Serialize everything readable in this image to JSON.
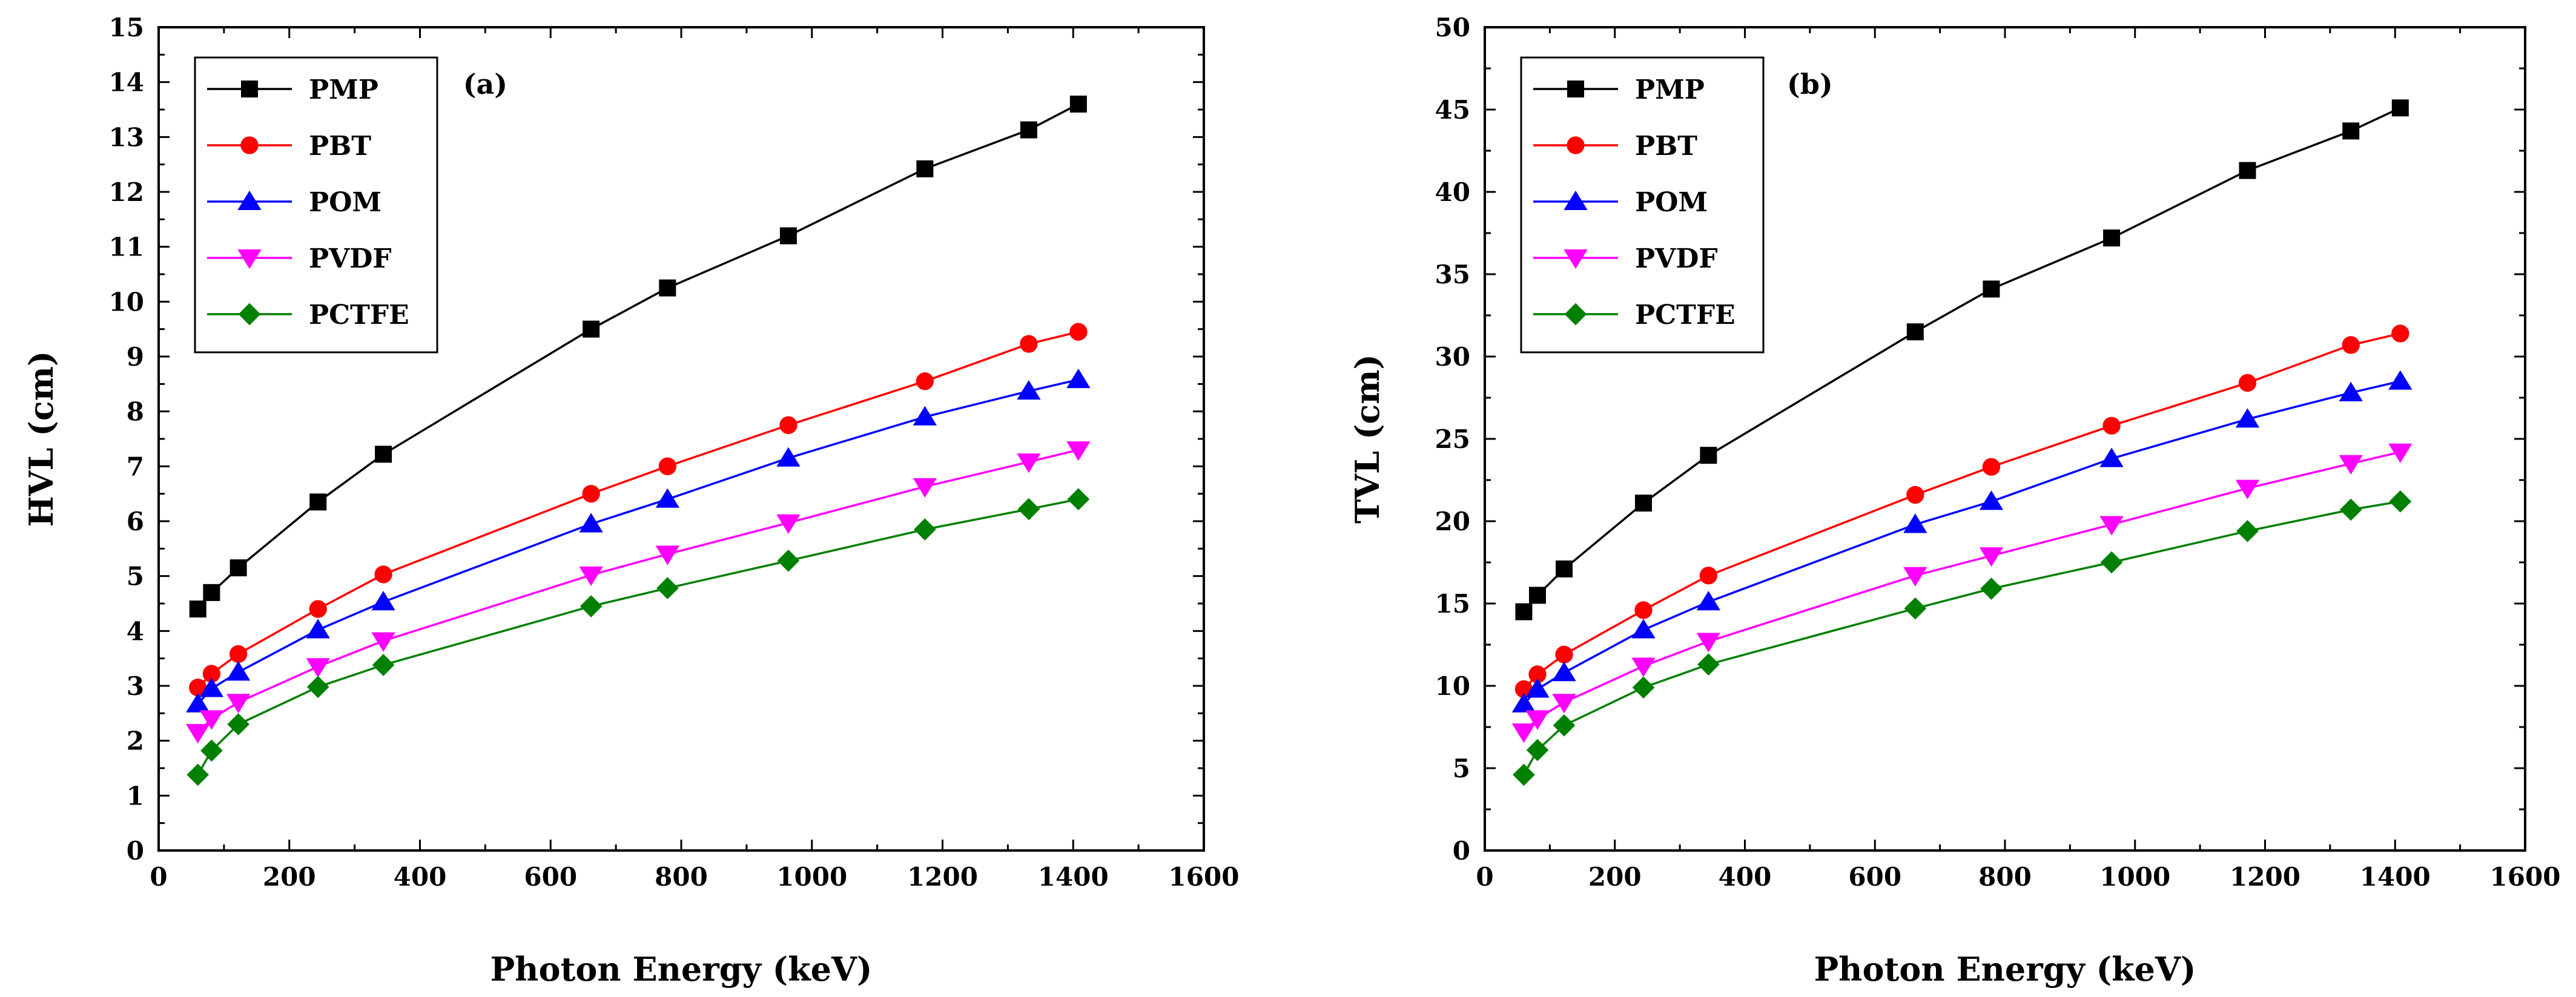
{
  "chart_data": [
    {
      "type": "line",
      "panel_label": "(a)",
      "xlabel": "Photon Energy (keV)",
      "ylabel": "HVL (cm)",
      "xlim": [
        0,
        1600
      ],
      "ylim": [
        0,
        15
      ],
      "xticks": [
        "0",
        "200",
        "400",
        "600",
        "800",
        "1000",
        "1200",
        "1400",
        "1600"
      ],
      "yticks": [
        "0",
        "1",
        "2",
        "3",
        "4",
        "5",
        "6",
        "7",
        "8",
        "9",
        "10",
        "11",
        "12",
        "13",
        "14",
        "15"
      ],
      "legend_position": "top-left",
      "x": [
        60,
        81,
        122,
        244,
        344,
        662,
        779,
        964,
        1173,
        1332,
        1408
      ],
      "series": [
        {
          "name": "PMP",
          "color": "#000000",
          "marker": "square",
          "values": [
            4.4,
            4.7,
            5.15,
            6.35,
            7.22,
            9.5,
            10.25,
            11.2,
            12.42,
            13.13,
            13.6
          ]
        },
        {
          "name": "PBT",
          "color": "#ff0000",
          "marker": "circle",
          "values": [
            2.97,
            3.22,
            3.58,
            4.4,
            5.03,
            6.5,
            7.0,
            7.75,
            8.55,
            9.23,
            9.45
          ]
        },
        {
          "name": "POM",
          "color": "#0000ff",
          "marker": "triangle-up",
          "values": [
            2.67,
            2.95,
            3.25,
            4.02,
            4.53,
            5.95,
            6.4,
            7.15,
            7.9,
            8.37,
            8.58
          ]
        },
        {
          "name": "PVDF",
          "color": "#ff00ff",
          "marker": "triangle-down",
          "values": [
            2.15,
            2.4,
            2.7,
            3.35,
            3.82,
            5.02,
            5.4,
            5.97,
            6.63,
            7.08,
            7.3
          ]
        },
        {
          "name": "PCTFE",
          "color": "#008000",
          "marker": "diamond",
          "values": [
            1.38,
            1.82,
            2.3,
            2.98,
            3.38,
            4.45,
            4.78,
            5.28,
            5.85,
            6.22,
            6.4
          ]
        }
      ]
    },
    {
      "type": "line",
      "panel_label": "(b)",
      "xlabel": "Photon Energy (keV)",
      "ylabel": "TVL (cm)",
      "xlim": [
        0,
        1600
      ],
      "ylim": [
        0,
        50
      ],
      "xticks": [
        "0",
        "200",
        "400",
        "600",
        "800",
        "1000",
        "1200",
        "1400",
        "1600"
      ],
      "yticks": [
        "0",
        "5",
        "10",
        "15",
        "20",
        "25",
        "30",
        "35",
        "40",
        "45",
        "50"
      ],
      "legend_position": "top-left",
      "x": [
        60,
        81,
        122,
        244,
        344,
        662,
        779,
        964,
        1173,
        1332,
        1408
      ],
      "series": [
        {
          "name": "PMP",
          "color": "#000000",
          "marker": "square",
          "values": [
            14.5,
            15.5,
            17.1,
            21.1,
            24.0,
            31.5,
            34.1,
            37.2,
            41.3,
            43.7,
            45.1
          ]
        },
        {
          "name": "PBT",
          "color": "#ff0000",
          "marker": "circle",
          "values": [
            9.8,
            10.7,
            11.9,
            14.6,
            16.7,
            21.6,
            23.3,
            25.8,
            28.4,
            30.7,
            31.4
          ]
        },
        {
          "name": "POM",
          "color": "#0000ff",
          "marker": "triangle-up",
          "values": [
            8.9,
            9.8,
            10.8,
            13.4,
            15.1,
            19.8,
            21.2,
            23.8,
            26.2,
            27.8,
            28.5
          ]
        },
        {
          "name": "PVDF",
          "color": "#ff00ff",
          "marker": "triangle-down",
          "values": [
            7.2,
            8.0,
            9.0,
            11.2,
            12.7,
            16.7,
            17.9,
            19.8,
            22.0,
            23.5,
            24.2
          ]
        },
        {
          "name": "PCTFE",
          "color": "#008000",
          "marker": "diamond",
          "values": [
            4.6,
            6.1,
            7.6,
            9.9,
            11.3,
            14.7,
            15.9,
            17.5,
            19.4,
            20.7,
            21.2
          ]
        }
      ]
    }
  ]
}
